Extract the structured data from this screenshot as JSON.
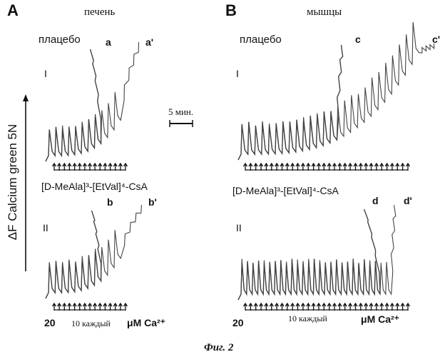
{
  "figure": {
    "caption": "Фиг. 2",
    "ylabel": "ΔF Calcium green 5N",
    "scale_bar": "5 мин.",
    "dose_start": "20",
    "dose_step": "10 каждый",
    "dose_unit": "μM Ca²⁺"
  },
  "panels": [
    {
      "letter": "A",
      "title": "печень",
      "placebo": "плацебо",
      "drug": "[D-MeAla]³-[EtVal]⁴-CsA",
      "rows": [
        {
          "roman": "I",
          "lbl1": "a",
          "lbl2": "a'"
        },
        {
          "roman": "II",
          "lbl1": "b",
          "lbl2": "b'"
        }
      ]
    },
    {
      "letter": "B",
      "title": "мышцы",
      "placebo": "плацебо",
      "drug": "[D-MeAla]³-[EtVal]⁴-CsA",
      "rows": [
        {
          "roman": "I",
          "lbl1": "c",
          "lbl2": "c'"
        },
        {
          "roman": "II",
          "lbl1": "d",
          "lbl2": "d'"
        }
      ]
    }
  ],
  "chart_data": [
    {
      "type": "line",
      "panel": "A",
      "trace": "I",
      "condition": "плацебо",
      "pulses_trace_1": 8,
      "pulses_trace_2": 11,
      "colors": {
        "trace": "#444444"
      }
    },
    {
      "type": "line",
      "panel": "A",
      "trace": "II",
      "condition": "[D-MeAla]³-[EtVal]⁴-CsA",
      "pulses_trace_1": 8,
      "pulses_trace_2": 11,
      "colors": {
        "trace": "#444444"
      }
    },
    {
      "type": "line",
      "panel": "B",
      "trace": "I",
      "condition": "плацебо",
      "pulses_trace_1": 14,
      "pulses_trace_2": 26,
      "colors": {
        "trace": "#444444"
      }
    },
    {
      "type": "line",
      "panel": "B",
      "trace": "II",
      "condition": "[D-MeAla]³-[EtVal]⁴-CsA",
      "pulses_trace_1": 25,
      "pulses_trace_2": 27,
      "colors": {
        "trace": "#444444"
      }
    }
  ]
}
